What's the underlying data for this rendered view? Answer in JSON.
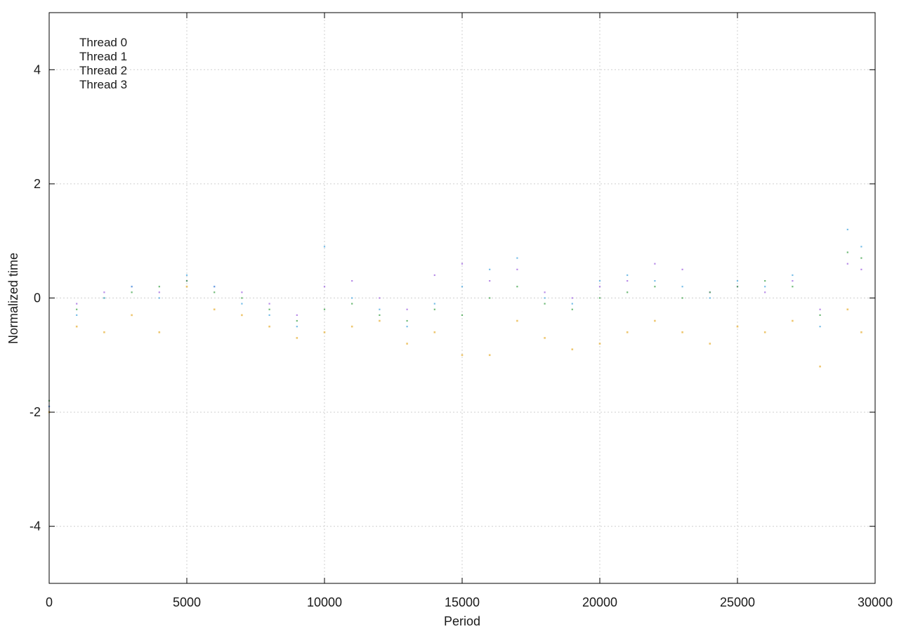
{
  "chart_data": {
    "type": "scatter",
    "title": "",
    "xlabel": "Period",
    "ylabel": "Normalized time",
    "xlim": [
      0,
      30000
    ],
    "ylim": [
      -5,
      5
    ],
    "xticks": [
      0,
      5000,
      10000,
      15000,
      20000,
      25000,
      30000
    ],
    "yticks": [
      -4,
      -2,
      0,
      2,
      4
    ],
    "grid": true,
    "legend_position": "top-left",
    "series": [
      {
        "name": "Thread 0",
        "color": "#a066e0",
        "x": [
          0,
          1000,
          2000,
          3000,
          4000,
          5000,
          6000,
          7000,
          8000,
          9000,
          10000,
          11000,
          12000,
          13000,
          14000,
          15000,
          16000,
          17000,
          18000,
          19000,
          20000,
          21000,
          22000,
          23000,
          24000,
          25000,
          26000,
          27000,
          28000,
          29000,
          29500
        ],
        "y": [
          -1.9,
          -0.1,
          0.1,
          0.2,
          0.1,
          0.3,
          0.2,
          0.1,
          -0.1,
          -0.3,
          0.2,
          0.3,
          0.0,
          -0.2,
          0.4,
          0.6,
          0.3,
          0.5,
          0.1,
          0.0,
          0.2,
          0.3,
          0.6,
          0.5,
          0.1,
          0.2,
          0.1,
          0.3,
          -0.2,
          0.6,
          0.5
        ]
      },
      {
        "name": "Thread 1",
        "color": "#3fa34a",
        "x": [
          0,
          1000,
          2000,
          3000,
          4000,
          5000,
          6000,
          7000,
          8000,
          9000,
          10000,
          11000,
          12000,
          13000,
          14000,
          15000,
          16000,
          17000,
          18000,
          19000,
          20000,
          21000,
          22000,
          23000,
          24000,
          25000,
          26000,
          27000,
          28000,
          29000,
          29500
        ],
        "y": [
          -1.8,
          -0.2,
          0.0,
          0.1,
          0.2,
          0.3,
          0.1,
          0.0,
          -0.2,
          -0.4,
          -0.2,
          -0.1,
          -0.3,
          -0.4,
          -0.2,
          -0.3,
          0.0,
          0.2,
          -0.1,
          -0.2,
          0.0,
          0.1,
          0.2,
          0.0,
          0.1,
          0.2,
          0.3,
          0.2,
          -0.3,
          0.8,
          0.7
        ]
      },
      {
        "name": "Thread 2",
        "color": "#4aa8e0",
        "x": [
          0,
          1000,
          2000,
          3000,
          4000,
          5000,
          6000,
          7000,
          8000,
          9000,
          10000,
          11000,
          12000,
          13000,
          14000,
          15000,
          16000,
          17000,
          18000,
          19000,
          20000,
          21000,
          22000,
          23000,
          24000,
          25000,
          26000,
          27000,
          28000,
          29000,
          29500
        ],
        "y": [
          -1.9,
          -0.3,
          0.0,
          0.2,
          0.0,
          0.4,
          0.2,
          -0.1,
          -0.3,
          -0.5,
          0.9,
          0.0,
          -0.2,
          -0.5,
          -0.1,
          0.2,
          0.5,
          0.7,
          0.0,
          -0.1,
          0.3,
          0.4,
          0.3,
          0.2,
          0.0,
          0.3,
          0.2,
          0.4,
          -0.5,
          1.2,
          0.9
        ]
      },
      {
        "name": "Thread 3",
        "color": "#e8b440",
        "x": [
          0,
          1000,
          2000,
          3000,
          4000,
          5000,
          6000,
          7000,
          8000,
          9000,
          10000,
          11000,
          12000,
          13000,
          14000,
          15000,
          16000,
          17000,
          18000,
          19000,
          20000,
          21000,
          22000,
          23000,
          24000,
          25000,
          26000,
          27000,
          28000,
          29000,
          29500
        ],
        "y": [
          -2.0,
          -0.5,
          -0.6,
          -0.3,
          -0.6,
          0.2,
          -0.2,
          -0.3,
          -0.5,
          -0.7,
          -0.6,
          -0.5,
          -0.4,
          -0.8,
          -0.6,
          -1.0,
          -1.0,
          -0.4,
          -0.7,
          -0.9,
          -0.8,
          -0.6,
          -0.4,
          -0.6,
          -0.8,
          -0.5,
          -0.6,
          -0.4,
          -1.2,
          -0.2,
          -0.6
        ]
      }
    ]
  }
}
